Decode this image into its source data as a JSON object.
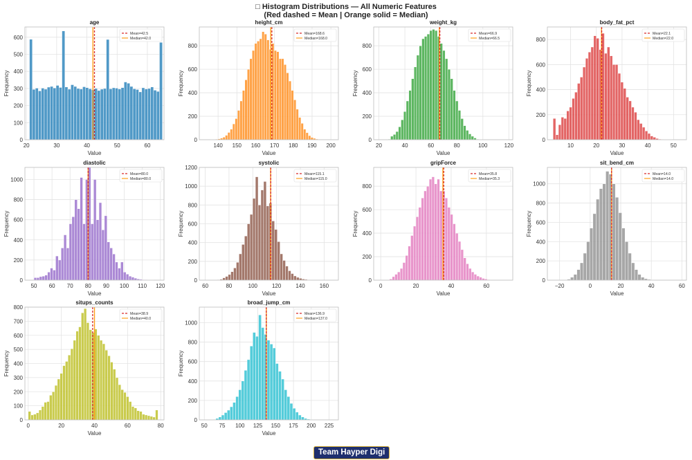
{
  "figure": {
    "title_line1": "□ Histogram Distributions — All Numeric Features",
    "title_line2": "(Red dashed = Mean | Orange solid = Median)"
  },
  "footer": {
    "badge": "Team Hayper Digi"
  },
  "colors": {
    "mean": "#d62728",
    "median": "#ff9f1a",
    "grid": "#e3e3e3",
    "spine": "#bdbdbd"
  },
  "chart_data": [
    {
      "type": "bar",
      "title": "age",
      "xlabel": "Value",
      "ylabel": "Frequency",
      "color": "#3e8fc2",
      "xlim": [
        19.5,
        65.5
      ],
      "ylim": [
        0,
        660
      ],
      "xticks": [
        20,
        30,
        40,
        50,
        60
      ],
      "yticks": [
        0,
        100,
        200,
        300,
        400,
        500,
        600
      ],
      "bins": {
        "start": 21,
        "width": 0.9773,
        "counts": [
          588,
          295,
          302,
          286,
          302,
          296,
          308,
          312,
          303,
          318,
          306,
          637,
          309,
          296,
          322,
          312,
          300,
          297,
          310,
          305,
          298,
          292,
          300,
          288,
          296,
          300,
          587,
          298,
          304,
          302,
          297,
          305,
          338,
          331,
          312,
          298,
          294,
          280,
          304,
          297,
          300,
          309,
          290,
          283,
          570
        ]
      },
      "mean": 42.5,
      "median": 42.0,
      "legend": [
        "Mean=42.5",
        "Median=42.0"
      ]
    },
    {
      "type": "bar",
      "title": "height_cm",
      "xlabel": "Value",
      "ylabel": "Frequency",
      "color": "#ff9933",
      "xlim": [
        130,
        204
      ],
      "ylim": [
        0,
        960
      ],
      "xticks": [
        140,
        150,
        160,
        170,
        180,
        190,
        200
      ],
      "yticks": [
        0,
        200,
        400,
        600,
        800
      ],
      "bins": {
        "start": 136,
        "width": 1.3,
        "counts": [
          2,
          3,
          5,
          8,
          14,
          22,
          38,
          62,
          90,
          135,
          180,
          250,
          330,
          420,
          510,
          600,
          690,
          760,
          820,
          840,
          860,
          920,
          900,
          850,
          770,
          820,
          760,
          750,
          690,
          690,
          640,
          570,
          500,
          420,
          340,
          260,
          190,
          140,
          90,
          60,
          35,
          20,
          12,
          6,
          4
        ]
      },
      "mean": 168.6,
      "median": 168.0,
      "legend": [
        "Mean=168.6",
        "Median=168.0"
      ]
    },
    {
      "type": "bar",
      "title": "weight_kg",
      "xlabel": "Value",
      "ylabel": "Frequency",
      "color": "#4caf50",
      "xlim": [
        16,
        123
      ],
      "ylim": [
        0,
        960
      ],
      "xticks": [
        20,
        40,
        60,
        80,
        100,
        120
      ],
      "yticks": [
        0,
        200,
        400,
        600,
        800
      ],
      "bins": {
        "start": 27,
        "width": 2.0,
        "counts": [
          5,
          30,
          45,
          70,
          110,
          170,
          240,
          330,
          420,
          520,
          620,
          720,
          800,
          860,
          880,
          900,
          930,
          940,
          930,
          880,
          820,
          760,
          690,
          600,
          520,
          420,
          330,
          250,
          180,
          120,
          80,
          50,
          30,
          15,
          5,
          3
        ]
      },
      "mean": 66.9,
      "median": 66.5,
      "legend": [
        "Mean=66.9",
        "Median=66.5"
      ]
    },
    {
      "type": "bar",
      "title": "body_fat_pct",
      "xlabel": "Value",
      "ylabel": "Frequency",
      "color": "#e05555",
      "xlim": [
        1,
        55
      ],
      "ylim": [
        0,
        900
      ],
      "xticks": [
        10,
        20,
        30,
        40,
        50
      ],
      "yticks": [
        0,
        200,
        400,
        600,
        800
      ],
      "bins": {
        "start": 3.2,
        "width": 1.05,
        "counts": [
          170,
          40,
          120,
          180,
          170,
          230,
          260,
          330,
          380,
          450,
          500,
          580,
          650,
          700,
          740,
          830,
          810,
          720,
          850,
          690,
          740,
          670,
          600,
          600,
          530,
          460,
          410,
          340,
          310,
          260,
          220,
          160,
          130,
          100,
          70,
          50,
          30,
          20,
          10,
          5,
          3,
          2,
          1,
          1
        ]
      },
      "mean": 22.1,
      "median": 22.0,
      "legend": [
        "Mean=22.1",
        "Median=22.0"
      ]
    },
    {
      "type": "bar",
      "title": "diastolic",
      "xlabel": "Value",
      "ylabel": "Frequency",
      "color": "#a37dd1",
      "xlim": [
        45,
        122
      ],
      "ylim": [
        0,
        1120
      ],
      "xticks": [
        50,
        60,
        70,
        80,
        90,
        100,
        110,
        120
      ],
      "yticks": [
        0,
        200,
        400,
        600,
        800,
        1000
      ],
      "bins": {
        "start": 50,
        "width": 1.5,
        "counts": [
          25,
          25,
          35,
          40,
          50,
          80,
          120,
          100,
          240,
          200,
          320,
          450,
          320,
          560,
          630,
          800,
          710,
          1020,
          560,
          1000,
          1120,
          560,
          1000,
          600,
          770,
          500,
          640,
          380,
          320,
          260,
          180,
          120,
          180,
          80,
          60,
          40,
          30,
          20,
          12,
          8,
          5,
          4,
          3,
          2
        ]
      },
      "mean": 80.0,
      "median": 80.0,
      "legend": [
        "Mean=80.0",
        "Median=80.0"
      ]
    },
    {
      "type": "bar",
      "title": "systolic",
      "xlabel": "Value",
      "ylabel": "Frequency",
      "color": "#9a6a5c",
      "xlim": [
        55,
        172
      ],
      "ylim": [
        0,
        1200
      ],
      "xticks": [
        60,
        80,
        100,
        120,
        140,
        160
      ],
      "yticks": [
        0,
        200,
        400,
        600,
        800,
        1000,
        1200
      ],
      "bins": {
        "start": 70,
        "width": 2.3,
        "counts": [
          5,
          10,
          25,
          40,
          60,
          90,
          130,
          190,
          280,
          380,
          470,
          600,
          700,
          870,
          1100,
          800,
          960,
          1050,
          790,
          820,
          630,
          540,
          410,
          280,
          210,
          150,
          100,
          70,
          45,
          30,
          20,
          12,
          8,
          4
        ]
      },
      "mean": 115.1,
      "median": 115.0,
      "legend": [
        "Mean=115.1",
        "Median=115.0"
      ]
    },
    {
      "type": "bar",
      "title": "gripForce",
      "xlabel": "Value",
      "ylabel": "Frequency",
      "color": "#e68ac6",
      "xlim": [
        -4,
        75
      ],
      "ylim": [
        0,
        960
      ],
      "xticks": [
        0,
        20,
        40,
        60
      ],
      "yticks": [
        0,
        200,
        400,
        600,
        800
      ],
      "bins": {
        "start": 5,
        "width": 1.5,
        "counts": [
          10,
          30,
          50,
          70,
          100,
          150,
          210,
          290,
          380,
          460,
          540,
          620,
          700,
          760,
          800,
          860,
          880,
          820,
          860,
          760,
          760,
          700,
          620,
          560,
          480,
          400,
          330,
          260,
          190,
          140,
          100,
          70,
          50,
          35,
          25,
          15,
          10,
          5
        ]
      },
      "mean": 35.8,
      "median": 35.3,
      "legend": [
        "Mean=35.8",
        "Median=35.3"
      ]
    },
    {
      "type": "bar",
      "title": "sit_bend_cm",
      "xlabel": "Value",
      "ylabel": "Frequency",
      "color": "#9e9e9e",
      "xlim": [
        -28,
        63
      ],
      "ylim": [
        0,
        1170
      ],
      "xticks": [
        -20,
        0,
        20,
        40,
        60
      ],
      "yticks": [
        0,
        200,
        400,
        600,
        800,
        1000
      ],
      "bins": {
        "start": -15,
        "width": 2.1,
        "counts": [
          10,
          30,
          60,
          110,
          180,
          280,
          400,
          540,
          690,
          840,
          950,
          1000,
          1130,
          1100,
          1000,
          860,
          700,
          540,
          400,
          280,
          180,
          110,
          60,
          30,
          15,
          8,
          4
        ]
      },
      "mean": 14.0,
      "median": 14.0,
      "legend": [
        "Mean=14.0",
        "Median=14.0"
      ]
    },
    {
      "type": "bar",
      "title": "situps_counts",
      "xlabel": "Value",
      "ylabel": "Frequency",
      "color": "#c4c63a",
      "xlim": [
        -2,
        82
      ],
      "ylim": [
        0,
        800
      ],
      "xticks": [
        0,
        20,
        40,
        60,
        80
      ],
      "yticks": [
        0,
        100,
        200,
        300,
        400,
        500,
        600,
        700,
        800
      ],
      "bins": {
        "start": 0,
        "width": 1.6,
        "counts": [
          60,
          35,
          40,
          50,
          70,
          95,
          125,
          130,
          175,
          200,
          245,
          290,
          330,
          385,
          415,
          460,
          505,
          565,
          630,
          660,
          760,
          790,
          690,
          640,
          620,
          645,
          600,
          565,
          540,
          495,
          455,
          410,
          360,
          300,
          250,
          215,
          195,
          165,
          130,
          95,
          85,
          65,
          60,
          40,
          35,
          30,
          25,
          20,
          70
        ]
      },
      "mean": 38.9,
      "median": 40.0,
      "legend": [
        "Mean=38.9",
        "Median=40.0"
      ]
    },
    {
      "type": "bar",
      "title": "broad_jump_cm",
      "xlabel": "Value",
      "ylabel": "Frequency",
      "color": "#42c7d6",
      "xlim": [
        43,
        238
      ],
      "ylim": [
        0,
        1160
      ],
      "xticks": [
        50,
        75,
        100,
        125,
        150,
        175,
        200,
        225
      ],
      "yticks": [
        0,
        200,
        400,
        600,
        800,
        1000
      ],
      "bins": {
        "start": 62,
        "width": 4.0,
        "counts": [
          5,
          15,
          30,
          50,
          75,
          100,
          135,
          180,
          240,
          310,
          400,
          510,
          620,
          760,
          900,
          860,
          1080,
          950,
          880,
          820,
          780,
          740,
          580,
          500,
          420,
          310,
          240,
          170,
          120,
          80,
          50,
          30,
          15,
          8,
          4
        ]
      },
      "mean": 136.9,
      "median": 137.0,
      "legend": [
        "Mean=136.9",
        "Median=137.0"
      ]
    }
  ]
}
